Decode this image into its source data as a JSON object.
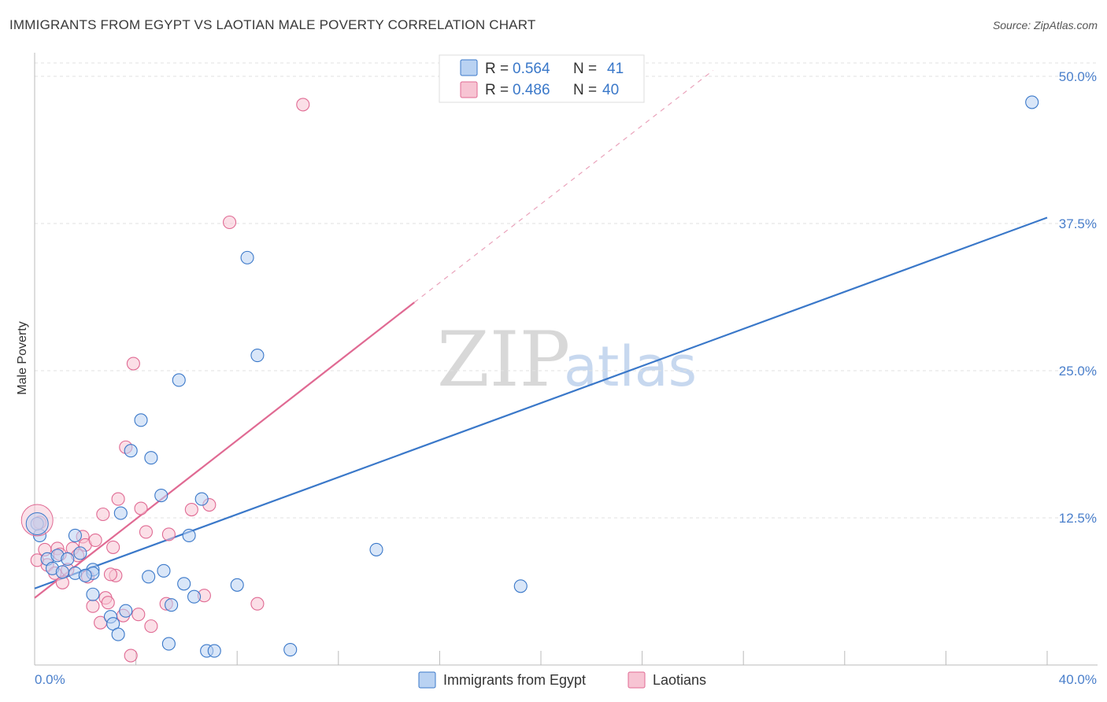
{
  "title": "IMMIGRANTS FROM EGYPT VS LAOTIAN MALE POVERTY CORRELATION CHART",
  "source": "Source: ZipAtlas.com",
  "watermark": {
    "part1": "ZIP",
    "part2": "atlas"
  },
  "colors": {
    "blue": "#3a78c9",
    "pink": "#e06a93",
    "blue_fill": "#b9d2f2",
    "pink_fill": "#f7c4d3",
    "axis_text": "#4a7fcb"
  },
  "legend": {
    "rows": [
      {
        "r_label": "R = ",
        "r_value": "0.564",
        "n_label": "N = ",
        "n_value": "41"
      },
      {
        "r_label": "R = ",
        "r_value": "0.486",
        "n_label": "N = ",
        "n_value": "40"
      }
    ]
  },
  "bottom_legend": [
    "Immigrants from Egypt",
    "Laotians"
  ],
  "chart_data": {
    "type": "scatter",
    "title": "IMMIGRANTS FROM EGYPT VS LAOTIAN MALE POVERTY CORRELATION CHART",
    "xlabel": "",
    "ylabel": "Male Poverty",
    "xlim": [
      0,
      40
    ],
    "ylim": [
      0,
      50
    ],
    "x_ticks": [
      "0.0%",
      "40.0%"
    ],
    "y_ticks": [
      "12.5%",
      "25.0%",
      "37.5%",
      "50.0%"
    ],
    "legend_position": "top-center",
    "series": [
      {
        "name": "Immigrants from Egypt",
        "r": 0.564,
        "n": 41,
        "trend": {
          "x": [
            0,
            40
          ],
          "y": [
            6.5,
            38.0
          ]
        },
        "points": [
          [
            0.2,
            11.0
          ],
          [
            0.5,
            9.0
          ],
          [
            0.7,
            8.2
          ],
          [
            0.9,
            9.3
          ],
          [
            1.3,
            9.0
          ],
          [
            1.6,
            11.0
          ],
          [
            1.6,
            7.8
          ],
          [
            1.8,
            9.5
          ],
          [
            2.3,
            8.1
          ],
          [
            2.3,
            7.8
          ],
          [
            2.3,
            6.0
          ],
          [
            3.0,
            4.1
          ],
          [
            3.1,
            3.5
          ],
          [
            3.3,
            2.6
          ],
          [
            3.4,
            12.9
          ],
          [
            3.6,
            4.6
          ],
          [
            3.8,
            18.2
          ],
          [
            4.2,
            20.8
          ],
          [
            4.5,
            7.5
          ],
          [
            4.6,
            17.6
          ],
          [
            5.0,
            14.4
          ],
          [
            5.1,
            8.0
          ],
          [
            5.3,
            1.8
          ],
          [
            5.4,
            5.1
          ],
          [
            5.7,
            24.2
          ],
          [
            5.9,
            6.9
          ],
          [
            6.1,
            11.0
          ],
          [
            6.3,
            5.8
          ],
          [
            6.6,
            14.1
          ],
          [
            6.8,
            1.2
          ],
          [
            7.1,
            1.2
          ],
          [
            8.0,
            6.8
          ],
          [
            8.4,
            34.6
          ],
          [
            8.8,
            26.3
          ],
          [
            10.1,
            1.3
          ],
          [
            13.5,
            9.8
          ],
          [
            19.2,
            6.7
          ],
          [
            39.4,
            47.8
          ],
          [
            0.1,
            12.0
          ],
          [
            1.1,
            7.9
          ],
          [
            2.0,
            7.6
          ]
        ]
      },
      {
        "name": "Laotians",
        "r": 0.486,
        "n": 40,
        "trend": {
          "x": [
            0,
            15
          ],
          "y": [
            5.7,
            30.8
          ]
        },
        "trend_dashed": {
          "x": [
            15,
            26.8
          ],
          "y": [
            30.8,
            50.5
          ]
        },
        "points": [
          [
            0.2,
            12.1
          ],
          [
            0.4,
            9.8
          ],
          [
            0.5,
            8.5
          ],
          [
            0.8,
            7.8
          ],
          [
            0.9,
            9.9
          ],
          [
            1.1,
            7.0
          ],
          [
            1.3,
            8.1
          ],
          [
            1.5,
            9.9
          ],
          [
            1.7,
            9.3
          ],
          [
            1.9,
            10.9
          ],
          [
            2.0,
            10.2
          ],
          [
            2.1,
            7.5
          ],
          [
            2.3,
            5.0
          ],
          [
            2.6,
            3.6
          ],
          [
            2.7,
            12.8
          ],
          [
            2.8,
            5.7
          ],
          [
            2.9,
            5.3
          ],
          [
            3.1,
            10.0
          ],
          [
            3.2,
            7.6
          ],
          [
            3.3,
            14.1
          ],
          [
            3.5,
            4.2
          ],
          [
            3.6,
            18.5
          ],
          [
            3.8,
            0.8
          ],
          [
            3.9,
            25.6
          ],
          [
            4.1,
            4.3
          ],
          [
            4.2,
            13.3
          ],
          [
            4.4,
            11.3
          ],
          [
            4.6,
            3.3
          ],
          [
            5.2,
            5.2
          ],
          [
            5.3,
            11.1
          ],
          [
            6.2,
            13.2
          ],
          [
            6.7,
            5.9
          ],
          [
            6.9,
            13.6
          ],
          [
            7.7,
            37.6
          ],
          [
            8.8,
            5.2
          ],
          [
            10.6,
            47.6
          ],
          [
            0.1,
            8.9
          ],
          [
            1.0,
            9.4
          ],
          [
            2.4,
            10.6
          ],
          [
            3.0,
            7.7
          ]
        ]
      }
    ]
  }
}
